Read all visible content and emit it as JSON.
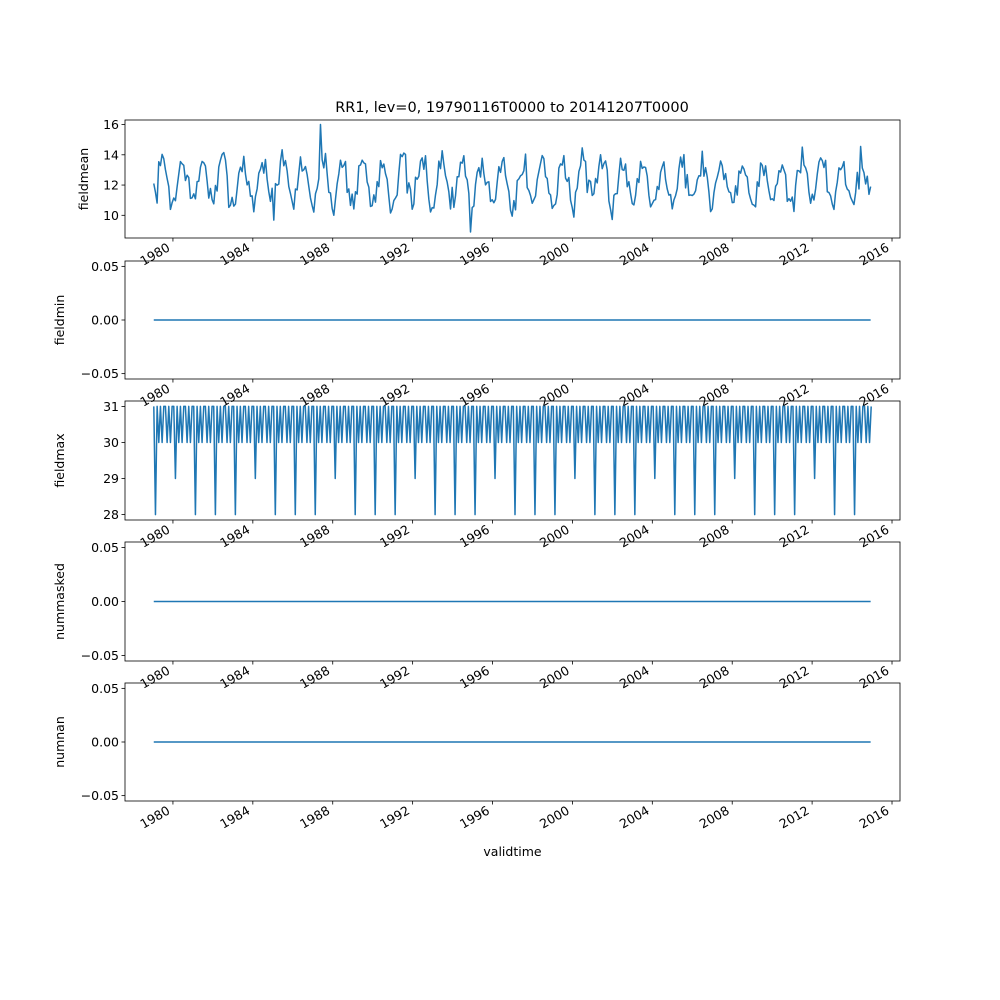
{
  "figure": {
    "title": "RR1, lev=0, 19790116T0000 to 20141207T0000"
  },
  "chart_data": [
    {
      "type": "line",
      "ylabel": "fieldmean",
      "xlabel": "",
      "xlim": [
        1977.6,
        2016.4
      ],
      "ylim": [
        8.5,
        16.3
      ],
      "yticks": [
        10,
        12,
        14,
        16
      ],
      "ytick_labels": [
        "10",
        "12",
        "14",
        "16"
      ],
      "xticks": [
        1980,
        1984,
        1988,
        1992,
        1996,
        2000,
        2004,
        2008,
        2012,
        2016
      ],
      "xtick_labels": [
        "1980",
        "1984",
        "1988",
        "1992",
        "1996",
        "2000",
        "2004",
        "2008",
        "2012",
        "2016"
      ],
      "series": [
        {
          "pattern": "seasonal_noise",
          "start": 1979.04,
          "end": 2014.93,
          "n": 431,
          "base": 12.2,
          "amplitude": 1.4,
          "noise": 1.0,
          "seed": 7,
          "first": 12.1,
          "last": 11.9,
          "min": 8.9,
          "max": 16.0,
          "color": "#1f77b4"
        }
      ]
    },
    {
      "type": "line",
      "ylabel": "fieldmin",
      "xlabel": "",
      "xlim": [
        1977.6,
        2016.4
      ],
      "ylim": [
        -0.055,
        0.055
      ],
      "yticks": [
        -0.05,
        0.0,
        0.05
      ],
      "ytick_labels": [
        "−0.05",
        "0.00",
        "0.05"
      ],
      "xticks": [
        1980,
        1984,
        1988,
        1992,
        1996,
        2000,
        2004,
        2008,
        2012,
        2016
      ],
      "xtick_labels": [
        "1980",
        "1984",
        "1988",
        "1992",
        "1996",
        "2000",
        "2004",
        "2008",
        "2012",
        "2016"
      ],
      "series": [
        {
          "pattern": "constant",
          "start": 1979.04,
          "end": 2014.93,
          "value": 0.0,
          "color": "#1f77b4"
        }
      ]
    },
    {
      "type": "line",
      "ylabel": "fieldmax",
      "xlabel": "",
      "xlim": [
        1977.6,
        2016.4
      ],
      "ylim": [
        27.85,
        31.15
      ],
      "yticks": [
        28,
        29,
        30,
        31
      ],
      "ytick_labels": [
        "28",
        "29",
        "30",
        "31"
      ],
      "xticks": [
        1980,
        1984,
        1988,
        1992,
        1996,
        2000,
        2004,
        2008,
        2012,
        2016
      ],
      "xtick_labels": [
        "1980",
        "1984",
        "1988",
        "1992",
        "1996",
        "2000",
        "2004",
        "2008",
        "2012",
        "2016"
      ],
      "series": [
        {
          "pattern": "days_in_month",
          "start_year": 1979,
          "start_month": 1,
          "end_year": 2014,
          "end_month": 12,
          "color": "#1f77b4"
        }
      ]
    },
    {
      "type": "line",
      "ylabel": "nummasked",
      "xlabel": "",
      "xlim": [
        1977.6,
        2016.4
      ],
      "ylim": [
        -0.055,
        0.055
      ],
      "yticks": [
        -0.05,
        0.0,
        0.05
      ],
      "ytick_labels": [
        "−0.05",
        "0.00",
        "0.05"
      ],
      "xticks": [
        1980,
        1984,
        1988,
        1992,
        1996,
        2000,
        2004,
        2008,
        2012,
        2016
      ],
      "xtick_labels": [
        "1980",
        "1984",
        "1988",
        "1992",
        "1996",
        "2000",
        "2004",
        "2008",
        "2012",
        "2016"
      ],
      "series": [
        {
          "pattern": "constant",
          "start": 1979.04,
          "end": 2014.93,
          "value": 0.0,
          "color": "#1f77b4"
        }
      ]
    },
    {
      "type": "line",
      "ylabel": "numnan",
      "xlabel": "validtime",
      "xlim": [
        1977.6,
        2016.4
      ],
      "ylim": [
        -0.055,
        0.055
      ],
      "yticks": [
        -0.05,
        0.0,
        0.05
      ],
      "ytick_labels": [
        "−0.05",
        "0.00",
        "0.05"
      ],
      "xticks": [
        1980,
        1984,
        1988,
        1992,
        1996,
        2000,
        2004,
        2008,
        2012,
        2016
      ],
      "xtick_labels": [
        "1980",
        "1984",
        "1988",
        "1992",
        "1996",
        "2000",
        "2004",
        "2008",
        "2012",
        "2016"
      ],
      "series": [
        {
          "pattern": "constant",
          "start": 1979.04,
          "end": 2014.93,
          "value": 0.0,
          "color": "#1f77b4"
        }
      ]
    }
  ]
}
